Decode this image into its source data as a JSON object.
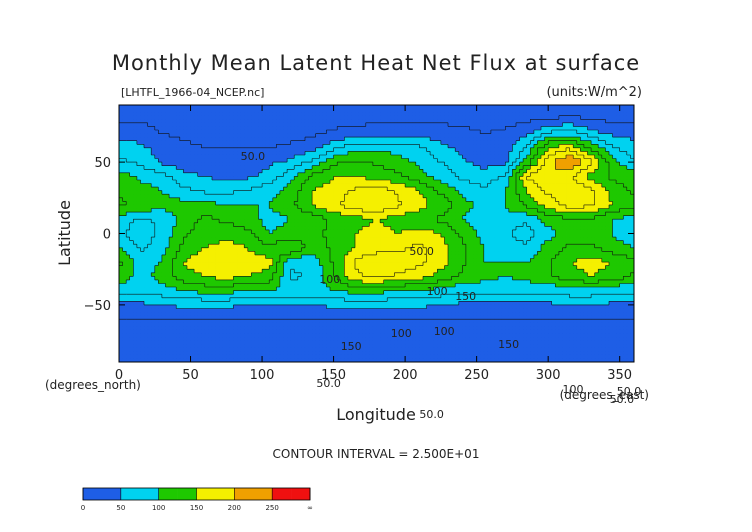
{
  "chart_data": {
    "type": "heatmap",
    "title": "Monthly Mean Latent Heat Net Flux at surface",
    "subtitle": "[LHTFL_1966-04_NCEP.nc]",
    "units": "(units:W/m^2)",
    "xlabel": "Longitude",
    "ylabel": "Latitude",
    "x_unit_label": "(degrees_east)",
    "y_unit_label": "(degrees_north)",
    "xlim": [
      0,
      360
    ],
    "ylim": [
      -90,
      90
    ],
    "x_ticks": [
      "0",
      "50",
      "100",
      "150",
      "200",
      "250",
      "300",
      "350"
    ],
    "y_ticks": [
      "50",
      "0",
      "−50"
    ],
    "contour_interval_text": "CONTOUR INTERVAL = 2.500E+01",
    "contour_labels": [
      "50.0",
      "100",
      "50.0",
      "100",
      "100",
      "150",
      "150",
      "100",
      "150",
      "100",
      "50.0",
      "50.0",
      "50.0",
      "50.0"
    ],
    "colorbar": {
      "ticks": [
        "0",
        "50",
        "100",
        "150",
        "200",
        "250",
        "∞"
      ],
      "bins": [
        {
          "from": 0,
          "to": 25,
          "color": "#1e5ee6"
        },
        {
          "from": 25,
          "to": 50,
          "color": "#1e5ee6"
        },
        {
          "from": 50,
          "to": 75,
          "color": "#00d2f0"
        },
        {
          "from": 75,
          "to": 100,
          "color": "#00d2f0"
        },
        {
          "from": 100,
          "to": 125,
          "color": "#1ec800"
        },
        {
          "from": 125,
          "to": 150,
          "color": "#1ec800"
        },
        {
          "from": 150,
          "to": 175,
          "color": "#f5f000"
        },
        {
          "from": 175,
          "to": 200,
          "color": "#f5f000"
        },
        {
          "from": 200,
          "to": 225,
          "color": "#f0a000"
        },
        {
          "from": 225,
          "to": 250,
          "color": "#f0a000"
        },
        {
          "from": 250,
          "to": 275,
          "color": "#f01010"
        },
        {
          "from": 275,
          "to": 300,
          "color": "#f01010"
        }
      ]
    },
    "field": {
      "lon": [
        0,
        15,
        30,
        45,
        60,
        75,
        90,
        105,
        120,
        135,
        150,
        165,
        180,
        195,
        210,
        225,
        240,
        255,
        270,
        285,
        300,
        315,
        330,
        345,
        360
      ],
      "lat": [
        90,
        80,
        70,
        60,
        50,
        40,
        30,
        20,
        10,
        0,
        -10,
        -20,
        -30,
        -40,
        -50,
        -60,
        -70,
        -80,
        -90
      ],
      "values": [
        [
          5,
          5,
          5,
          5,
          5,
          5,
          5,
          5,
          5,
          5,
          5,
          5,
          5,
          5,
          5,
          5,
          5,
          5,
          5,
          5,
          5,
          5,
          5,
          5,
          5
        ],
        [
          20,
          20,
          15,
          15,
          15,
          15,
          15,
          15,
          15,
          15,
          15,
          15,
          20,
          20,
          20,
          20,
          20,
          15,
          15,
          20,
          25,
          30,
          25,
          20,
          20
        ],
        [
          40,
          40,
          25,
          20,
          20,
          15,
          15,
          15,
          15,
          20,
          30,
          35,
          40,
          40,
          40,
          35,
          30,
          25,
          30,
          45,
          80,
          90,
          60,
          45,
          40
        ],
        [
          60,
          55,
          40,
          30,
          25,
          25,
          25,
          25,
          30,
          40,
          70,
          90,
          95,
          90,
          80,
          60,
          40,
          30,
          35,
          80,
          150,
          170,
          120,
          80,
          60
        ],
        [
          80,
          70,
          45,
          35,
          30,
          30,
          35,
          45,
          55,
          80,
          120,
          130,
          120,
          110,
          95,
          75,
          55,
          40,
          45,
          110,
          190,
          230,
          180,
          110,
          80
        ],
        [
          110,
          95,
          85,
          60,
          50,
          40,
          45,
          60,
          90,
          130,
          150,
          150,
          140,
          130,
          110,
          90,
          70,
          60,
          80,
          180,
          200,
          180,
          140,
          120,
          110
        ],
        [
          120,
          110,
          100,
          80,
          70,
          70,
          75,
          90,
          110,
          150,
          160,
          180,
          190,
          170,
          150,
          120,
          95,
          80,
          100,
          150,
          180,
          200,
          180,
          140,
          120
        ],
        [
          130,
          120,
          110,
          110,
          110,
          100,
          100,
          100,
          120,
          150,
          170,
          190,
          200,
          180,
          160,
          140,
          110,
          90,
          100,
          130,
          160,
          190,
          180,
          150,
          130
        ],
        [
          90,
          70,
          80,
          110,
          130,
          120,
          110,
          90,
          100,
          110,
          130,
          140,
          150,
          140,
          130,
          120,
          100,
          80,
          90,
          80,
          110,
          120,
          120,
          100,
          90
        ],
        [
          80,
          60,
          80,
          120,
          140,
          140,
          130,
          100,
          110,
          120,
          130,
          150,
          160,
          150,
          160,
          150,
          120,
          90,
          80,
          60,
          90,
          110,
          110,
          100,
          80
        ],
        [
          100,
          70,
          90,
          130,
          150,
          160,
          150,
          130,
          150,
          110,
          130,
          150,
          160,
          170,
          180,
          160,
          130,
          100,
          90,
          80,
          110,
          130,
          130,
          110,
          100
        ],
        [
          130,
          90,
          100,
          150,
          170,
          170,
          160,
          160,
          80,
          80,
          130,
          180,
          200,
          190,
          180,
          160,
          130,
          100,
          100,
          100,
          120,
          150,
          160,
          150,
          130
        ],
        [
          120,
          90,
          110,
          140,
          150,
          160,
          150,
          140,
          70,
          80,
          120,
          170,
          180,
          170,
          160,
          140,
          120,
          110,
          100,
          110,
          120,
          140,
          150,
          140,
          120
        ],
        [
          80,
          80,
          90,
          100,
          110,
          110,
          100,
          100,
          90,
          90,
          100,
          110,
          110,
          100,
          100,
          90,
          80,
          80,
          80,
          80,
          80,
          90,
          90,
          80,
          80
        ],
        [
          40,
          45,
          50,
          55,
          55,
          55,
          50,
          50,
          50,
          50,
          55,
          60,
          60,
          55,
          55,
          50,
          45,
          45,
          45,
          45,
          45,
          50,
          50,
          45,
          40
        ],
        [
          25,
          25,
          25,
          25,
          25,
          25,
          25,
          25,
          25,
          25,
          25,
          25,
          25,
          25,
          25,
          25,
          25,
          25,
          25,
          25,
          25,
          25,
          25,
          25,
          25
        ],
        [
          15,
          15,
          15,
          15,
          15,
          15,
          15,
          15,
          15,
          15,
          15,
          15,
          15,
          15,
          15,
          15,
          15,
          15,
          15,
          15,
          15,
          15,
          15,
          15,
          15
        ],
        [
          8,
          8,
          8,
          8,
          8,
          8,
          8,
          8,
          8,
          8,
          8,
          8,
          8,
          8,
          8,
          8,
          8,
          8,
          8,
          8,
          8,
          8,
          8,
          8,
          8
        ],
        [
          5,
          5,
          5,
          5,
          5,
          5,
          5,
          5,
          5,
          5,
          5,
          5,
          5,
          5,
          5,
          5,
          5,
          5,
          5,
          5,
          5,
          5,
          5,
          5,
          5
        ]
      ]
    }
  }
}
